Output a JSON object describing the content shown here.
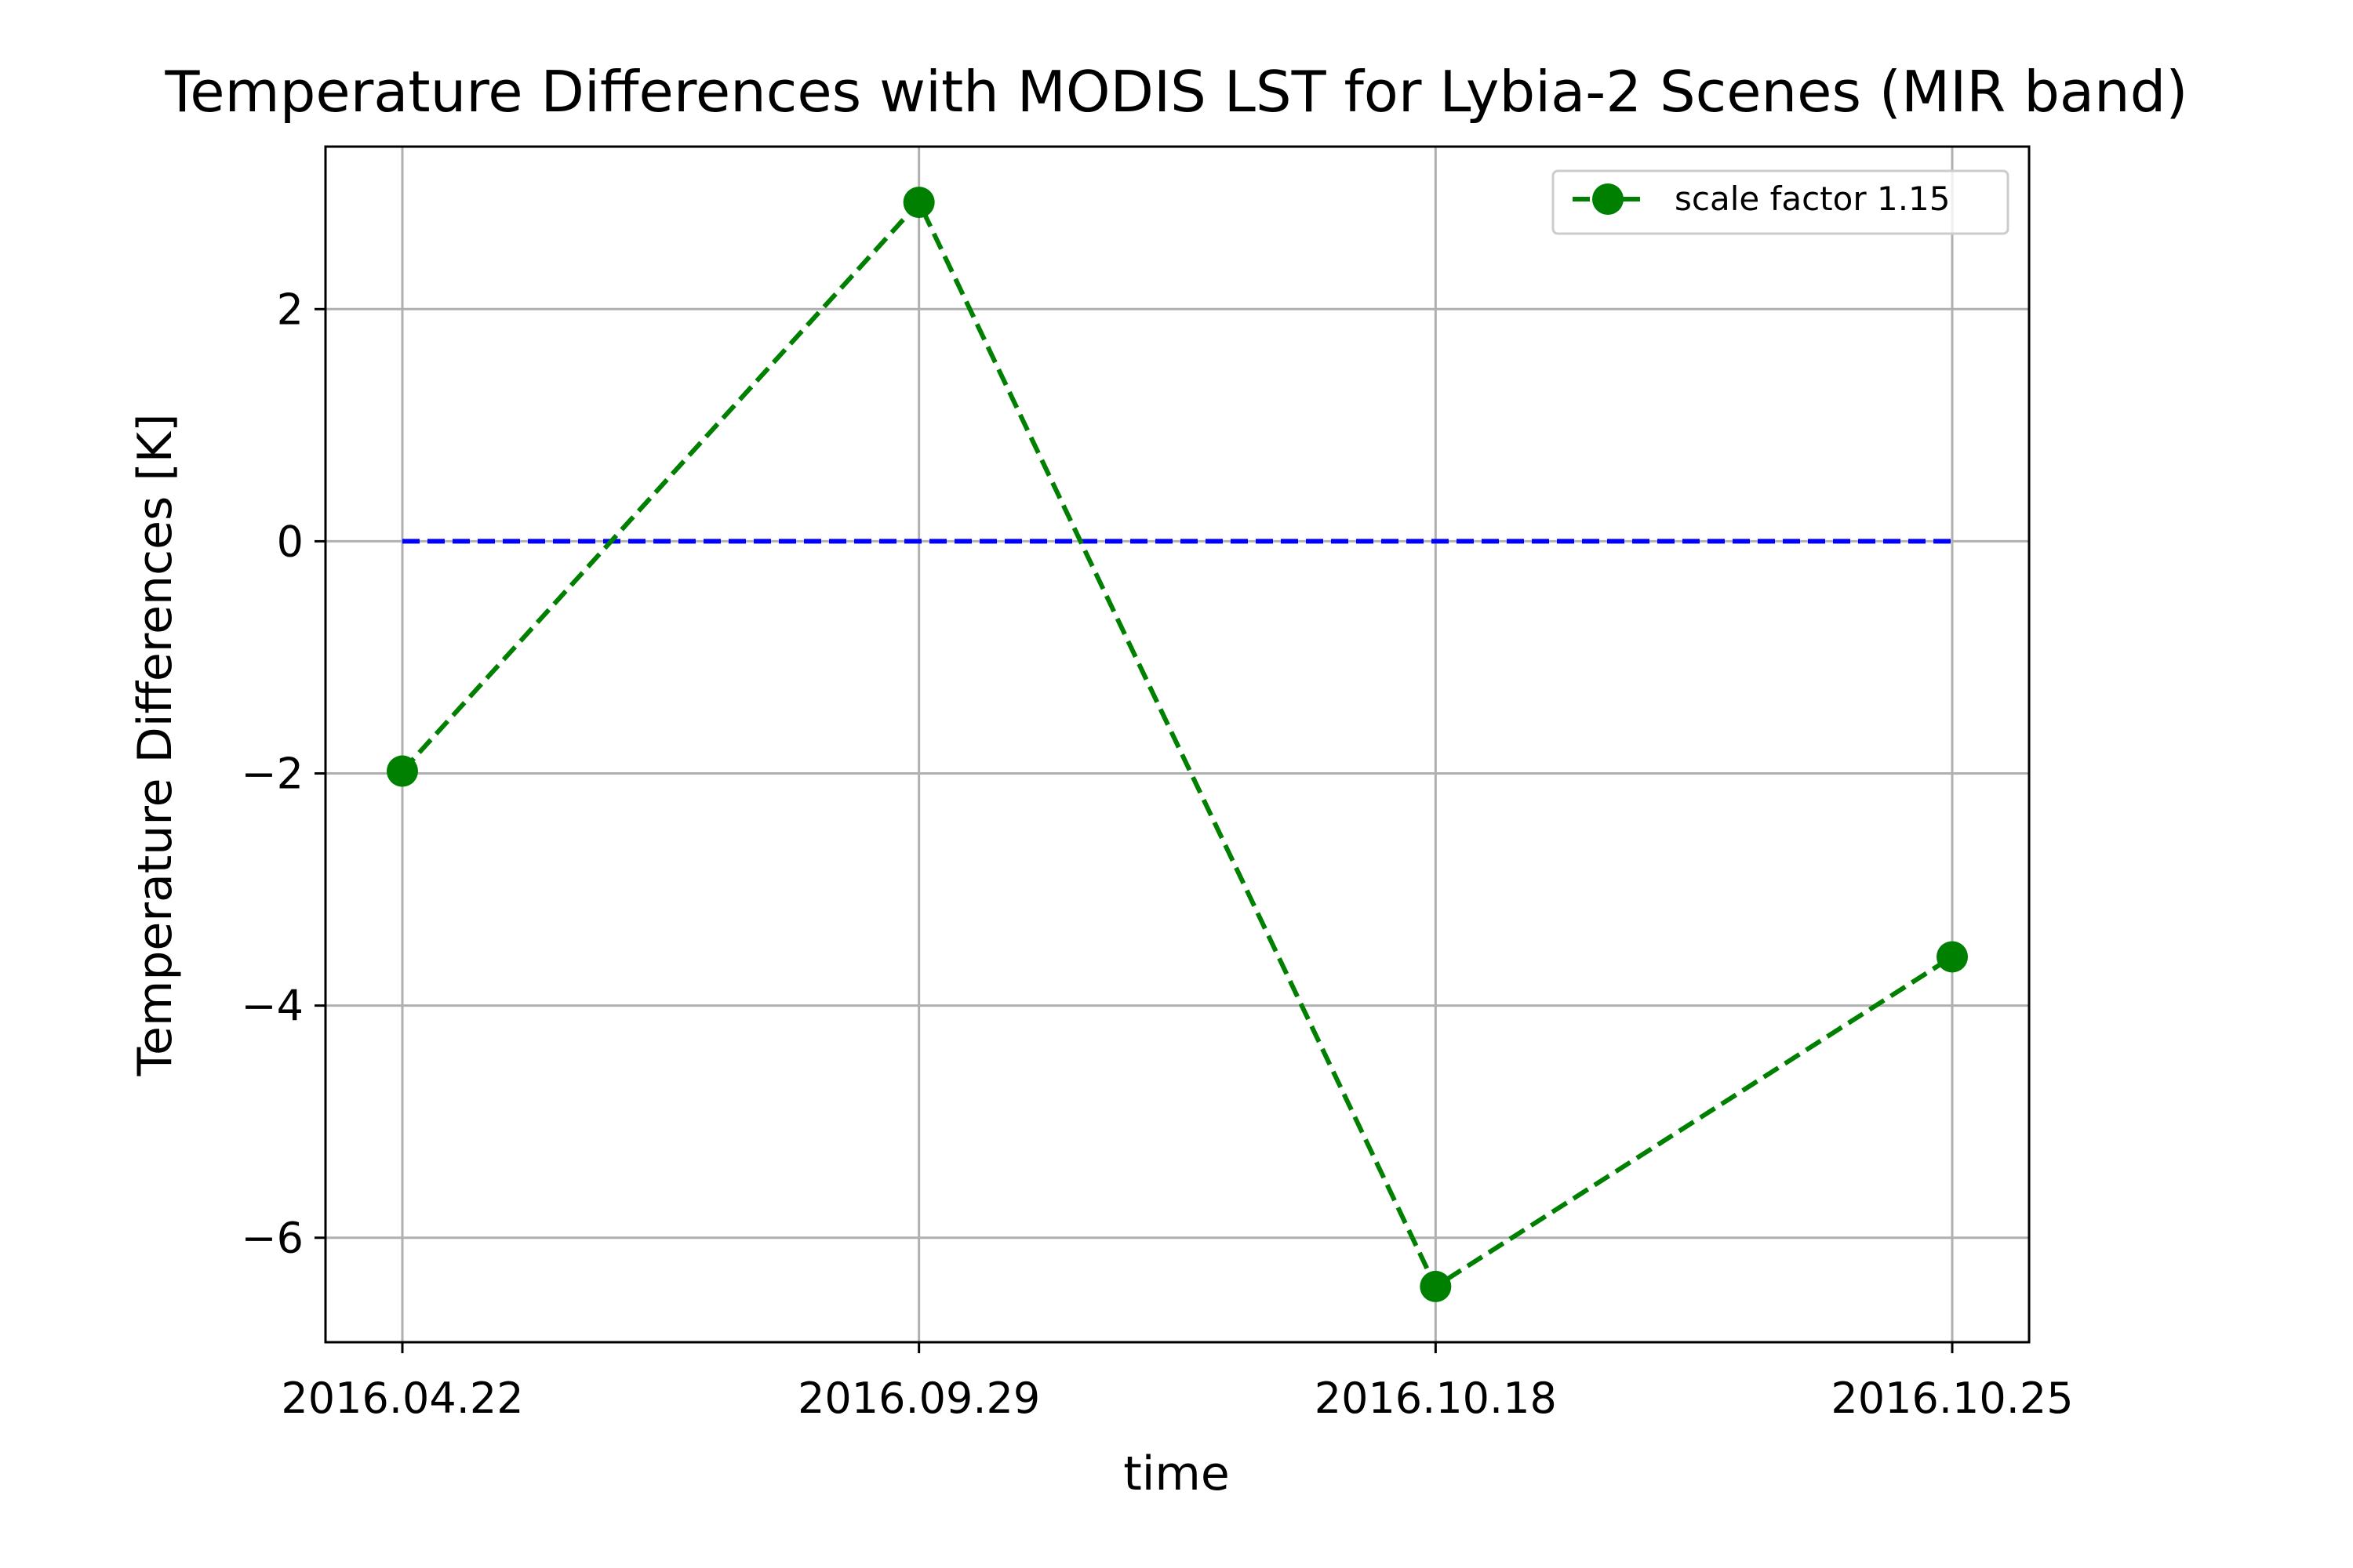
{
  "chart_data": {
    "type": "line",
    "title": "Temperature Differences with MODIS LST for Lybia-2 Scenes (MIR band)",
    "xlabel": "time",
    "ylabel": "Temperature Differences [K]",
    "categories": [
      "2016.04.22",
      "2016.09.29",
      "2016.10.18",
      "2016.10.25"
    ],
    "series": [
      {
        "name": "scale factor 1.15",
        "values": [
          -1.98,
          2.92,
          -6.42,
          -3.58
        ],
        "color": "#008000",
        "linestyle": "dashed",
        "marker": "circle"
      }
    ],
    "reference_line": {
      "y": 0,
      "color": "#0000ff",
      "linestyle": "dashed"
    },
    "ylim": [
      -6.9,
      3.4
    ],
    "yticks": [
      -6,
      -4,
      -2,
      0,
      2
    ],
    "ytick_labels": [
      "−6",
      "−4",
      "−2",
      "0",
      "2"
    ],
    "grid": true,
    "legend_position": "top-right"
  }
}
